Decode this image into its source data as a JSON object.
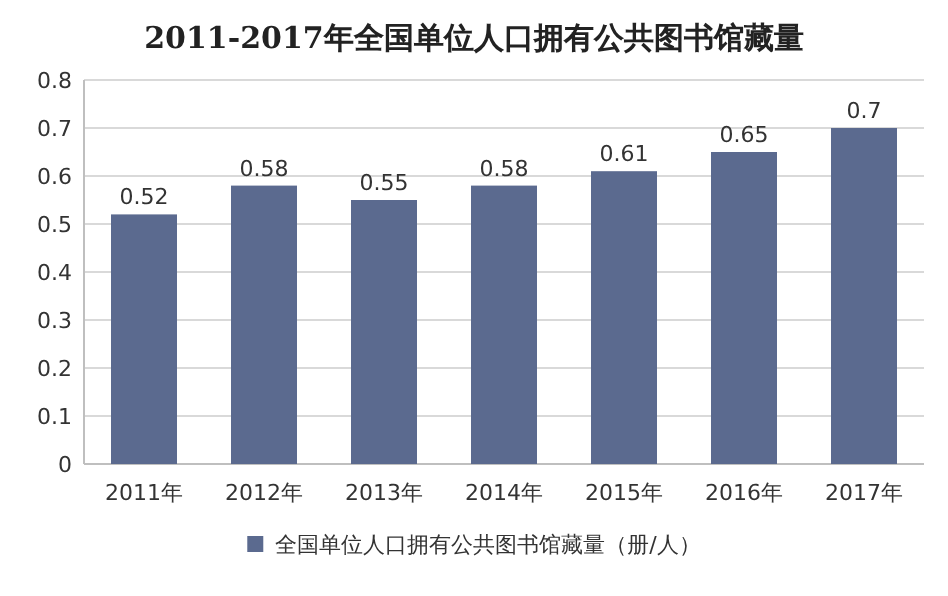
{
  "chart_data": {
    "type": "bar",
    "title": "2011-2017年全国单位人口拥有公共图书馆藏量",
    "categories": [
      "2011年",
      "2012年",
      "2013年",
      "2014年",
      "2015年",
      "2016年",
      "2017年"
    ],
    "series": [
      {
        "name": "全国单位人口拥有公共图书馆藏量（册/人）",
        "color": "#5b6a8f",
        "values": [
          0.52,
          0.58,
          0.55,
          0.58,
          0.61,
          0.65,
          0.7
        ]
      }
    ],
    "ylim": [
      0,
      0.8
    ],
    "yticks": [
      0,
      0.1,
      0.2,
      0.3,
      0.4,
      0.5,
      0.6,
      0.7,
      0.8
    ],
    "grid": "y",
    "legend": "bottom",
    "data_labels": true
  }
}
